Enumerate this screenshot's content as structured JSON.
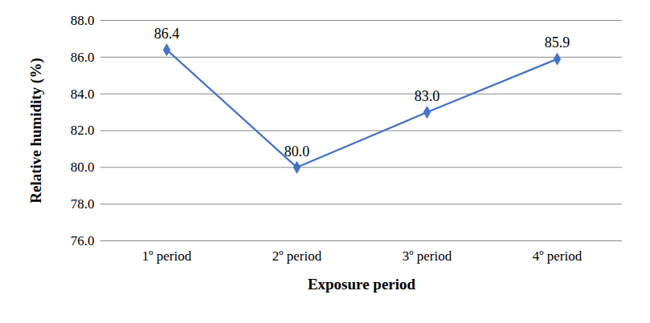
{
  "chart_data": {
    "type": "line",
    "x_label": "Exposure period",
    "y_label": "Relative humidity (%)",
    "categories": [
      "1º period",
      "2º period",
      "3º period",
      "4º period"
    ],
    "values": [
      86.4,
      80.0,
      83.0,
      85.9
    ],
    "value_labels": [
      "86.4",
      "80.0",
      "83.0",
      "85.9"
    ],
    "data_labels": true,
    "color": "#4472c4",
    "marker": "diamond",
    "ylim": [
      76,
      88
    ],
    "yticks": [
      {
        "value": 76,
        "label": "76.0"
      },
      {
        "value": 78,
        "label": "78.0"
      },
      {
        "value": 80,
        "label": "80.0"
      },
      {
        "value": 82,
        "label": "82.0"
      },
      {
        "value": 84,
        "label": "84.0"
      },
      {
        "value": 86,
        "label": "86.0"
      },
      {
        "value": 88,
        "label": "88.0"
      }
    ],
    "grid": true
  }
}
